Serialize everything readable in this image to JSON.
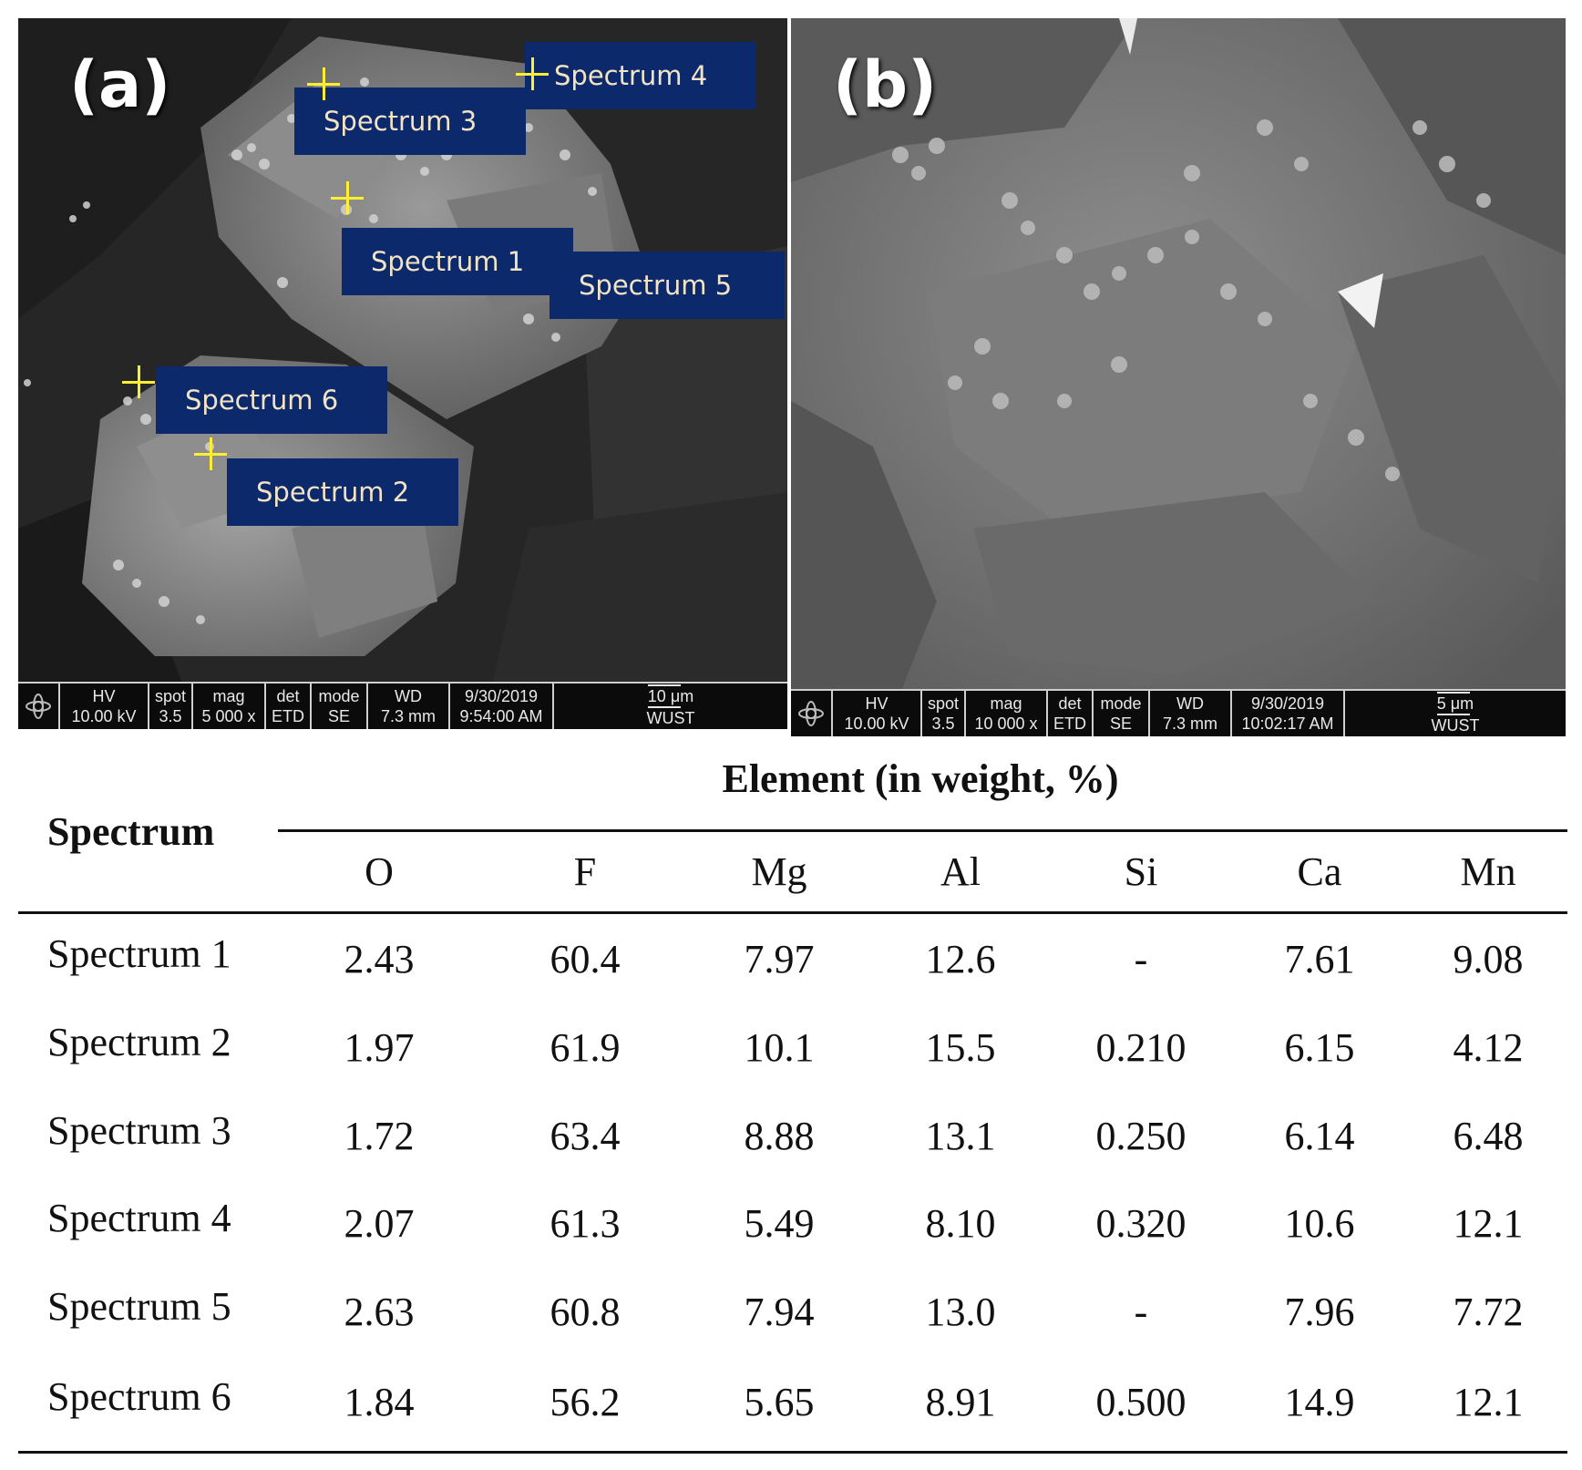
{
  "panels": {
    "a": {
      "letter": "(a)",
      "spectrum_labels": [
        "Spectrum 4",
        "Spectrum 3",
        "Spectrum 1",
        "Spectrum 5",
        "Spectrum 6",
        "Spectrum 2"
      ],
      "infobar": {
        "hv_label": "HV",
        "hv": "10.00 kV",
        "spot_label": "spot",
        "spot": "3.5",
        "mag_label": "mag",
        "mag": "5 000 x",
        "det_label": "det",
        "det": "ETD",
        "mode_label": "mode",
        "mode": "SE",
        "wd_label": "WD",
        "wd": "7.3 mm",
        "date": "9/30/2019",
        "time": "9:54:00 AM",
        "scale": "10 μm",
        "institution": "WUST"
      }
    },
    "b": {
      "letter": "(b)",
      "infobar": {
        "hv_label": "HV",
        "hv": "10.00 kV",
        "spot_label": "spot",
        "spot": "3.5",
        "mag_label": "mag",
        "mag": "10 000 x",
        "det_label": "det",
        "det": "ETD",
        "mode_label": "mode",
        "mode": "SE",
        "wd_label": "WD",
        "wd": "7.3 mm",
        "date": "9/30/2019",
        "time": "10:02:17 AM",
        "scale": "5 μm",
        "institution": "WUST"
      }
    }
  },
  "table": {
    "row_header": "Spectrum",
    "group_header": "Element (in weight, %)",
    "columns": [
      "O",
      "F",
      "Mg",
      "Al",
      "Si",
      "Ca",
      "Mn"
    ],
    "rows": [
      {
        "label": "Spectrum 1",
        "values": [
          "2.43",
          "60.4",
          "7.97",
          "12.6",
          "-",
          "7.61",
          "9.08"
        ]
      },
      {
        "label": "Spectrum 2",
        "values": [
          "1.97",
          "61.9",
          "10.1",
          "15.5",
          "0.210",
          "6.15",
          "4.12"
        ]
      },
      {
        "label": "Spectrum 3",
        "values": [
          "1.72",
          "63.4",
          "8.88",
          "13.1",
          "0.250",
          "6.14",
          "6.48"
        ]
      },
      {
        "label": "Spectrum 4",
        "values": [
          "2.07",
          "61.3",
          "5.49",
          "8.10",
          "0.320",
          "10.6",
          "12.1"
        ]
      },
      {
        "label": "Spectrum 5",
        "values": [
          "2.63",
          "60.8",
          "7.94",
          "13.0",
          "-",
          "7.96",
          "7.72"
        ]
      },
      {
        "label": "Spectrum 6",
        "values": [
          "1.84",
          "56.2",
          "5.65",
          "8.91",
          "0.500",
          "14.9",
          "12.1"
        ]
      }
    ]
  }
}
